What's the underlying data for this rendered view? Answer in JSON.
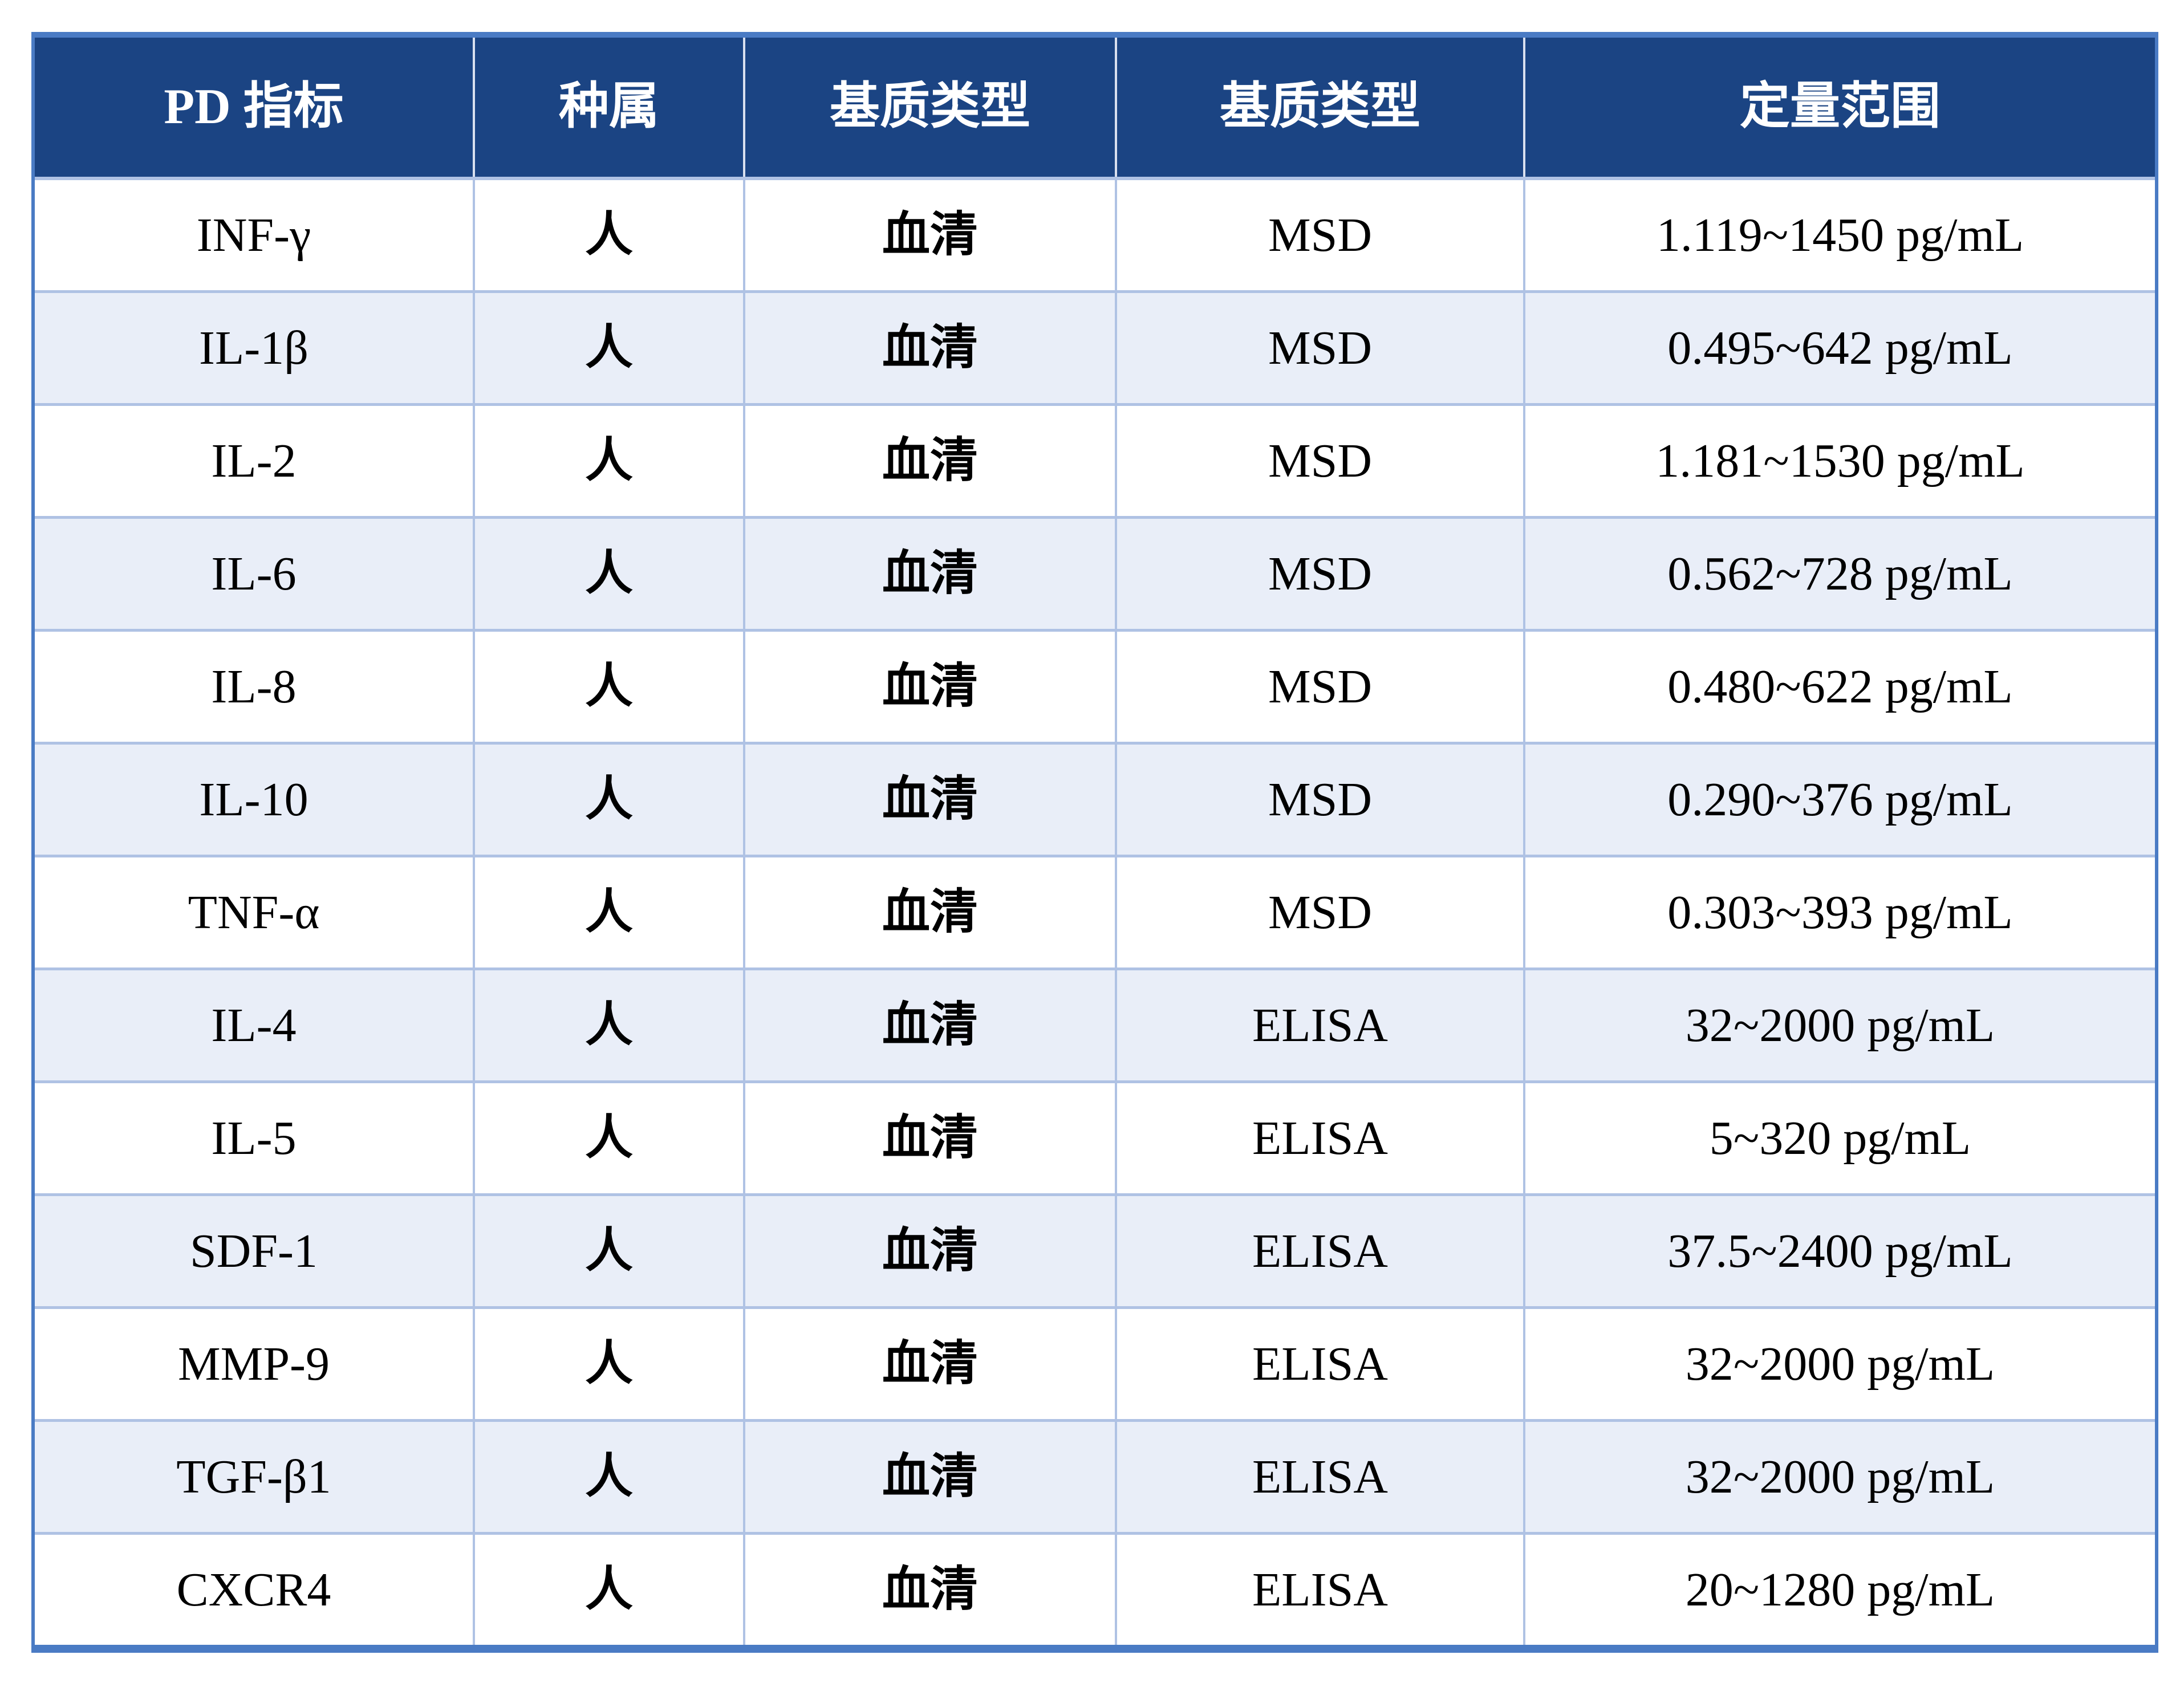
{
  "table": {
    "columns": [
      {
        "label": "PD 指标"
      },
      {
        "label": "种属"
      },
      {
        "label": "基质类型"
      },
      {
        "label": "基质类型"
      },
      {
        "label": "定量范围"
      }
    ],
    "rows": [
      {
        "indicator": "INF-γ",
        "species": "人",
        "matrix": "血清",
        "method": "MSD",
        "range": "1.119~1450 pg/mL"
      },
      {
        "indicator": "IL-1β",
        "species": "人",
        "matrix": "血清",
        "method": "MSD",
        "range": "0.495~642 pg/mL"
      },
      {
        "indicator": "IL-2",
        "species": "人",
        "matrix": "血清",
        "method": "MSD",
        "range": "1.181~1530 pg/mL"
      },
      {
        "indicator": "IL-6",
        "species": "人",
        "matrix": "血清",
        "method": "MSD",
        "range": "0.562~728 pg/mL"
      },
      {
        "indicator": "IL-8",
        "species": "人",
        "matrix": "血清",
        "method": "MSD",
        "range": "0.480~622 pg/mL"
      },
      {
        "indicator": "IL-10",
        "species": "人",
        "matrix": "血清",
        "method": "MSD",
        "range": "0.290~376 pg/mL"
      },
      {
        "indicator": "TNF-α",
        "species": "人",
        "matrix": "血清",
        "method": "MSD",
        "range": "0.303~393 pg/mL"
      },
      {
        "indicator": "IL-4",
        "species": "人",
        "matrix": "血清",
        "method": "ELISA",
        "range": "32~2000 pg/mL"
      },
      {
        "indicator": "IL-5",
        "species": "人",
        "matrix": "血清",
        "method": "ELISA",
        "range": "5~320 pg/mL"
      },
      {
        "indicator": "SDF-1",
        "species": "人",
        "matrix": "血清",
        "method": "ELISA",
        "range": "37.5~2400 pg/mL"
      },
      {
        "indicator": "MMP-9",
        "species": "人",
        "matrix": "血清",
        "method": "ELISA",
        "range": "32~2000 pg/mL"
      },
      {
        "indicator": "TGF-β1",
        "species": "人",
        "matrix": "血清",
        "method": "ELISA",
        "range": "32~2000 pg/mL"
      },
      {
        "indicator": "CXCR4",
        "species": "人",
        "matrix": "血清",
        "method": "ELISA",
        "range": "20~1280 pg/mL"
      }
    ]
  },
  "colors": {
    "header_bg": "#1b4483",
    "header_text": "#ffffff",
    "row_bg": "#ffffff",
    "row_alt_bg": "#e9eef8",
    "outer_border": "#4a7bc4",
    "grid_line": "#afc2e4",
    "header_grid_line": "#d9e0ef",
    "text": "#000000",
    "page_bg": "#ffffff"
  }
}
